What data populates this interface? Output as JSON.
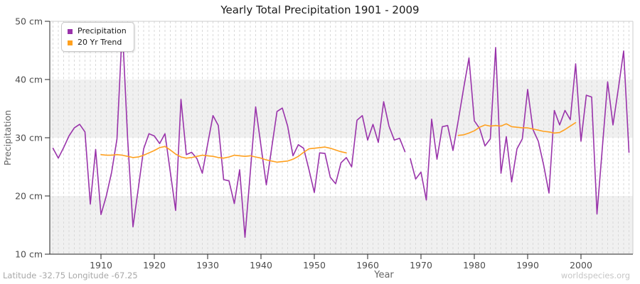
{
  "title": "Yearly Total Precipitation 1901 - 2009",
  "footer": {
    "left": "Latitude -32.75 Longitude -67.25",
    "right": "worldspecies.org"
  },
  "legend": {
    "items": [
      {
        "label": "Precipitation",
        "color": "#9933aa"
      },
      {
        "label": "20 Yr Trend",
        "color": "#ffa01e"
      }
    ]
  },
  "colors": {
    "precipitation_line": "#9933aa",
    "trend_line": "#ffa01e",
    "band_fill": "#f0f0f0",
    "gridline": "#d9d9d9",
    "axis_spine": "#262626",
    "frame_light": "#cccccc",
    "tick_text": "#4d4d4d",
    "axis_label_text": "#666666",
    "title_text": "#1a1a1a",
    "footer_left_text": "#a8a8a8",
    "footer_right_text": "#c6c6c6"
  },
  "chart_data": {
    "type": "line",
    "title": "Yearly Total Precipitation 1901 - 2009",
    "xlabel": "Year",
    "ylabel": "Precipitation",
    "x_range": [
      1901,
      2009
    ],
    "ylim": [
      10,
      50
    ],
    "x_ticks": [
      1910,
      1920,
      1930,
      1940,
      1950,
      1960,
      1970,
      1980,
      1990,
      2000
    ],
    "y_ticks": [
      10,
      20,
      30,
      40,
      50
    ],
    "y_tick_suffix": " cm",
    "grid": "vertical-dashed-per-year",
    "shaded_bands": [
      [
        10,
        20
      ],
      [
        30,
        40
      ]
    ],
    "legend_position": "top-left",
    "series": [
      {
        "name": "Precipitation",
        "color": "#9933aa",
        "segments": [
          {
            "start_year": 1901,
            "values": [
              28.2,
              26.5,
              28.3,
              30.3,
              31.7,
              32.3,
              31.0,
              18.6,
              28.0,
              16.8,
              20.0,
              24.1,
              29.8,
              49.1,
              29.8,
              14.7,
              21.3,
              28.1,
              30.7,
              30.3,
              29.0,
              30.7,
              24.1,
              17.5,
              36.6,
              27.1,
              27.5,
              26.4,
              23.9,
              28.9,
              33.8,
              32.1,
              22.8,
              22.6,
              18.7,
              24.5,
              12.9,
              24.1,
              35.3,
              28.6,
              21.9,
              28.2,
              34.5,
              35.1,
              32.0,
              26.9,
              28.8,
              28.2,
              24.5,
              20.6,
              27.4,
              27.3,
              23.2,
              22.1,
              25.7,
              26.6,
              25.0,
              33.0,
              33.8,
              29.6,
              32.3,
              29.2,
              36.2,
              32.0,
              29.6,
              29.9,
              27.6
            ]
          },
          {
            "start_year": 1968,
            "values": [
              26.4,
              22.9,
              24.1,
              19.3,
              33.2,
              26.3,
              31.9,
              32.1,
              27.8,
              33.0,
              38.5,
              43.7,
              32.9,
              31.6,
              28.6,
              29.8,
              45.5,
              23.9,
              30.2,
              22.4,
              28.1,
              29.8,
              38.3,
              31.4,
              29.4,
              25.3,
              20.5,
              34.7,
              32.2,
              34.7,
              33.1,
              42.7,
              29.4,
              37.3,
              37.0,
              16.9,
              28.2,
              39.6,
              32.2,
              38.4,
              44.9,
              27.5
            ]
          }
        ]
      },
      {
        "name": "20 Yr Trend",
        "color": "#ffa01e",
        "segments": [
          {
            "start_year": 1910,
            "values": [
              27.1,
              27.0,
              27.0,
              27.1,
              27.0,
              26.8,
              26.6,
              26.7,
              27.0,
              27.4,
              27.8,
              28.3,
              28.5,
              27.9,
              27.2,
              26.7,
              26.5,
              26.6,
              26.8,
              27.0,
              26.9,
              26.8,
              26.6,
              26.5,
              26.7,
              27.0,
              26.9,
              26.8,
              26.9,
              26.7,
              26.5,
              26.2,
              26.0,
              25.8,
              25.9,
              26.0,
              26.3,
              26.8,
              27.5,
              28.1,
              28.2,
              28.3,
              28.4,
              28.2,
              27.9,
              27.6,
              27.4
            ]
          },
          {
            "start_year": 1977,
            "values": [
              30.4,
              30.5,
              30.8,
              31.2,
              31.8,
              32.2,
              32.0,
              32.1,
              32.0,
              32.4,
              31.9,
              31.8,
              31.7,
              31.7,
              31.5,
              31.3,
              31.1,
              31.0,
              30.8,
              30.9,
              31.4,
              32.0,
              32.6
            ]
          }
        ]
      }
    ]
  }
}
